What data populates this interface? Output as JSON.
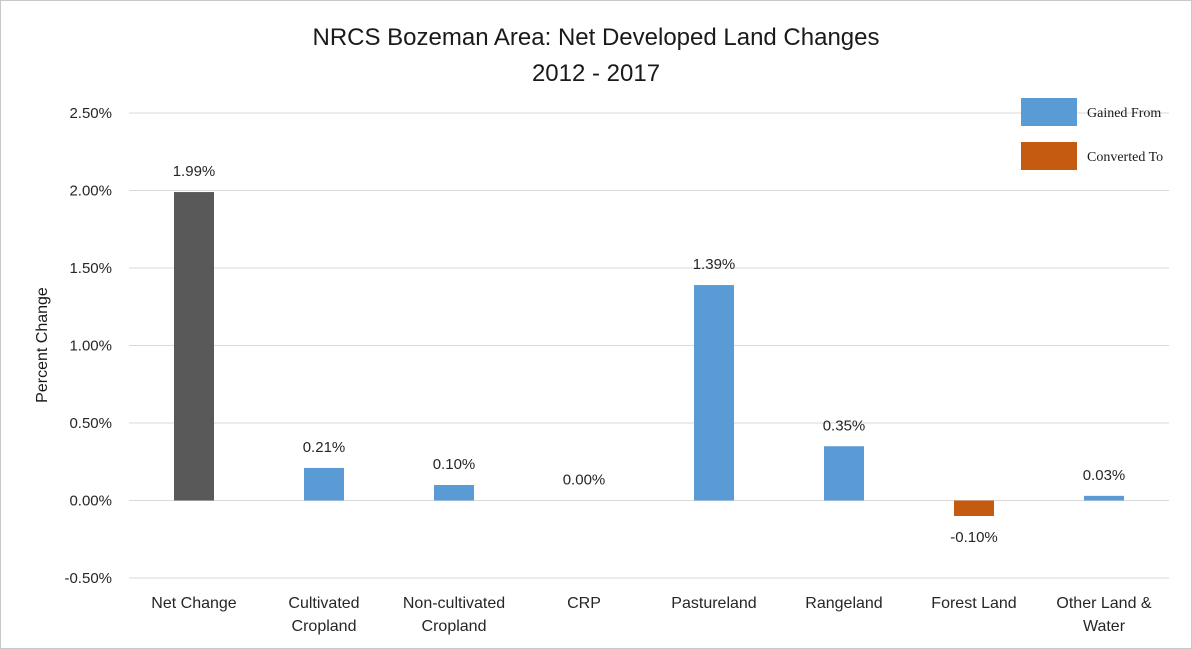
{
  "chart_data": {
    "type": "bar",
    "title_lines": [
      "NRCS Bozeman Area: Net Developed Land Changes",
      "2012 - 2017"
    ],
    "xlabel": "",
    "ylabel": "Percent Change",
    "ylim": [
      -0.5,
      2.5
    ],
    "yticks": [
      -0.5,
      0.0,
      0.5,
      1.0,
      1.5,
      2.0,
      2.5
    ],
    "ytick_labels": [
      "-0.50%",
      "0.00%",
      "0.50%",
      "1.00%",
      "1.50%",
      "2.00%",
      "2.50%"
    ],
    "grid": true,
    "legend_position": "top-right",
    "categories": [
      [
        "Net Change"
      ],
      [
        "Cultivated",
        "Cropland"
      ],
      [
        "Non-cultivated",
        "Cropland"
      ],
      [
        "CRP"
      ],
      [
        "Pastureland"
      ],
      [
        "Rangeland"
      ],
      [
        "Forest Land"
      ],
      [
        "Other Land &",
        "Water"
      ]
    ],
    "values": [
      1.99,
      0.21,
      0.1,
      0.0,
      1.39,
      0.35,
      -0.1,
      0.03
    ],
    "data_labels": [
      "1.99%",
      "0.21%",
      "0.10%",
      "0.00%",
      "1.39%",
      "0.35%",
      "-0.10%",
      "0.03%"
    ],
    "bar_groups": [
      "net",
      "gained",
      "gained",
      "gained",
      "gained",
      "gained",
      "converted",
      "gained"
    ],
    "legend": [
      {
        "name": "Gained From",
        "group": "gained",
        "color": "#5b9bd5"
      },
      {
        "name": "Converted To",
        "group": "converted",
        "color": "#c55a11"
      }
    ],
    "colors": {
      "net": "#595959",
      "gained": "#5b9bd5",
      "converted": "#c55a11"
    }
  }
}
